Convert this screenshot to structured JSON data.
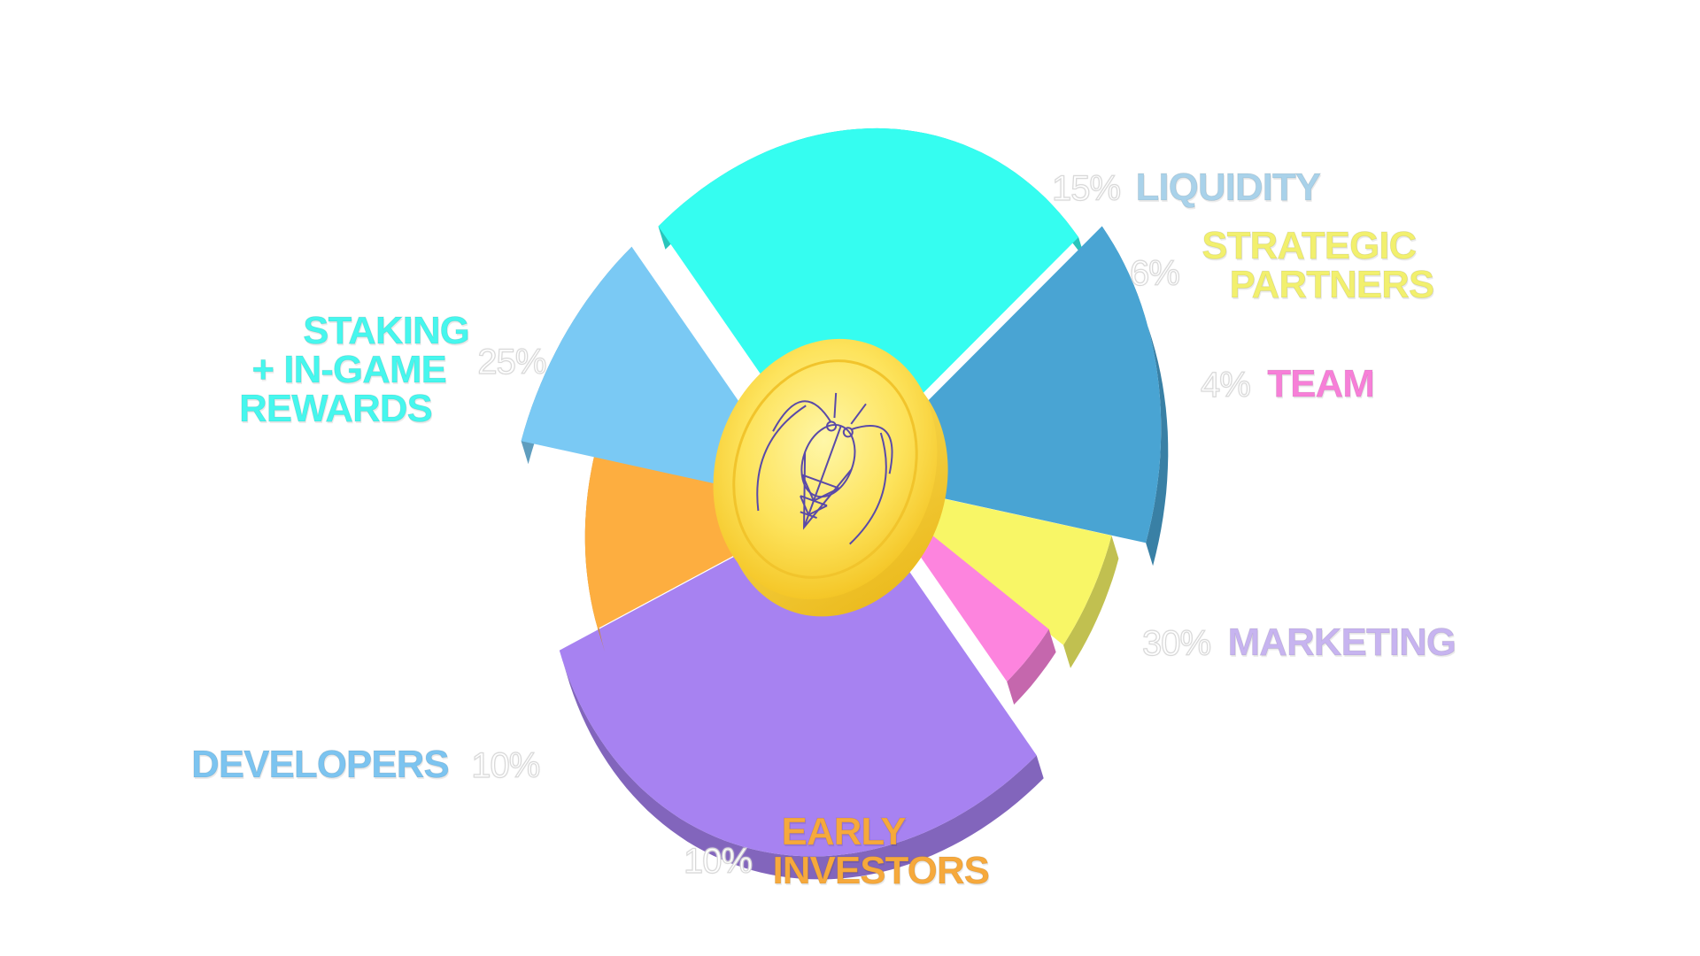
{
  "chart_data": {
    "type": "pie",
    "title": "",
    "slices": [
      {
        "label_lines": [
          "STAKING",
          "+ IN-GAME",
          "REWARDS"
        ],
        "percent_label": "25%",
        "value": 25,
        "color": "#35fdf0"
      },
      {
        "label_lines": [
          "LIQUIDITY"
        ],
        "percent_label": "15%",
        "value": 15,
        "color": "#49a4d3"
      },
      {
        "label_lines": [
          "STRATEGIC",
          "PARTNERS"
        ],
        "percent_label": "6%",
        "value": 6,
        "color": "#f8f666"
      },
      {
        "label_lines": [
          "TEAM"
        ],
        "percent_label": "4%",
        "value": 4,
        "color": "#fd84de"
      },
      {
        "label_lines": [
          "MARKETING"
        ],
        "percent_label": "30%",
        "value": 30,
        "color": "#a782f1"
      },
      {
        "label_lines": [
          "EARLY",
          "INVESTORS"
        ],
        "percent_label": "10%",
        "value": 10,
        "color": "#fdae40"
      },
      {
        "label_lines": [
          "DEVELOPERS"
        ],
        "percent_label": "10%",
        "value": 10,
        "color": "#7ac9f4"
      }
    ],
    "label_colors": {
      "staking": "#46f7ee",
      "liquidity": "#a9d2ea",
      "strategic": "#f2f06e",
      "team": "#f77fd8",
      "marketing": "#c7b4f0",
      "early": "#f6a93c",
      "developers": "#7cc4f0"
    },
    "center_icon": "cicada-coin-icon",
    "legend": "none"
  }
}
